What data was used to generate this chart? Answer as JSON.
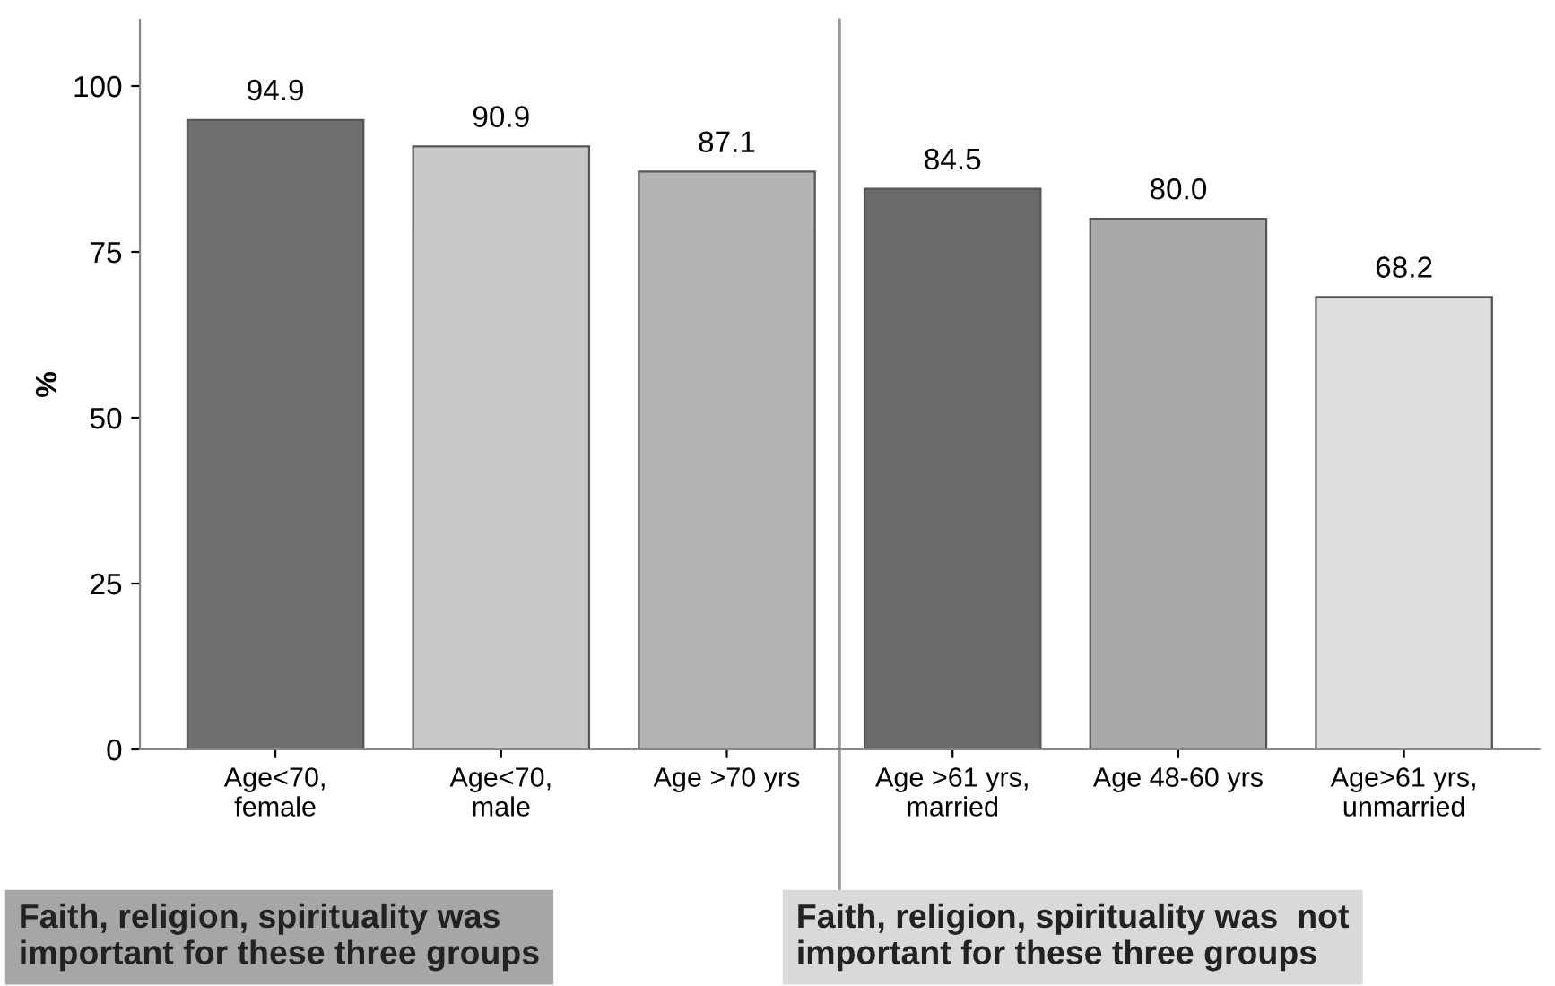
{
  "chart_data": {
    "type": "bar",
    "ylabel": "%",
    "categories": [
      "Age<70,\nfemale",
      "Age<70,\nmale",
      "Age >70 yrs",
      "Age >61 yrs,\nmarried",
      "Age 48-60 yrs",
      "Age>61 yrs,\nunmarried"
    ],
    "values": [
      94.9,
      90.9,
      87.1,
      84.5,
      80.0,
      68.2
    ],
    "value_labels": [
      "94.9",
      "90.9",
      "87.1",
      "84.5",
      "80.0",
      "68.2"
    ],
    "colors": [
      "#6e6e6e",
      "#c9c9c9",
      "#b3b3b3",
      "#6a6a6a",
      "#a9a9a9",
      "#dedede"
    ],
    "ylim": [
      0,
      110
    ],
    "yticks": [
      0,
      25,
      50,
      75,
      100
    ],
    "grid": false,
    "legend": false,
    "annotations": [
      "Faith, religion, spirituality was\nimportant for these three groups",
      "Faith, religion, spirituality was  not\nimportant for these three groups"
    ]
  }
}
